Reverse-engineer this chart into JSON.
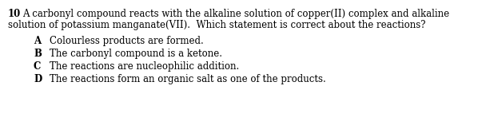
{
  "question_number": "10",
  "question_text_line1": "A carbonyl compound reacts with the alkaline solution of copper(II) complex and alkaline",
  "question_text_line2": "solution of potassium manganate(VII).  Which statement is correct about the reactions?",
  "options": [
    {
      "label": "A",
      "text": "Colourless products are formed."
    },
    {
      "label": "B",
      "text": "The carbonyl compound is a ketone."
    },
    {
      "label": "C",
      "text": "The reactions are nucleophilic addition."
    },
    {
      "label": "D",
      "text": "The reactions form an organic salt as one of the products."
    }
  ],
  "background_color": "#ffffff",
  "text_color": "#000000",
  "font_size_question": 8.5,
  "font_size_options": 8.5,
  "font_family": "DejaVu Serif"
}
